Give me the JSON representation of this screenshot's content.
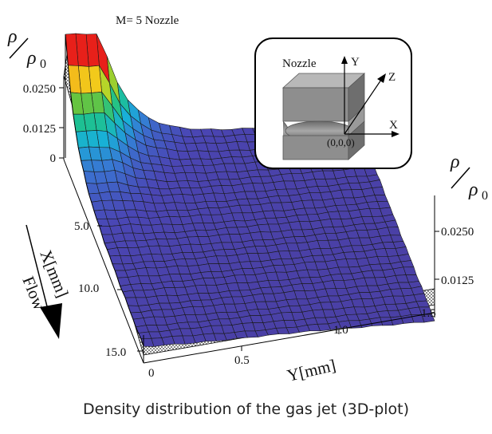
{
  "caption": "Density distribution of the gas jet (3D-plot)",
  "chart_data": {
    "type": "surface",
    "title": "M= 5 Nozzle",
    "xlabel": "X[mm]",
    "ylabel": "Y[mm]",
    "zlabel_num": "ρ",
    "zlabel_den": "ρ",
    "zlabel_sub": "0",
    "flow_label": "Flow",
    "x_ticks": [
      "5.0",
      "10.0",
      "15.0"
    ],
    "y_ticks": [
      "0",
      "0.5",
      "1.0",
      "1.5"
    ],
    "z_ticks_left": [
      "0.0250",
      "0.0125",
      "0"
    ],
    "z_ticks_right": [
      "0.0250",
      "0.0125"
    ],
    "xlim": [
      0,
      16
    ],
    "ylim": [
      0,
      1.5
    ],
    "zlim": [
      0,
      0.035
    ],
    "colorscale": [
      "#e8201a",
      "#f5a21a",
      "#f0e21c",
      "#6cc43a",
      "#1ec28c",
      "#18b0d8",
      "#3a74d2",
      "#4a46b4",
      "#4a3c9c"
    ],
    "surface_shape": "peak density near nozzle exit (X≈0, Y≈0) decaying with X and Y to about 0.002"
  },
  "inset": {
    "nozzle_label": "Nozzle",
    "axis_y": "Y",
    "axis_z": "Z",
    "axis_x": "X",
    "origin": "(0,0,0)"
  }
}
